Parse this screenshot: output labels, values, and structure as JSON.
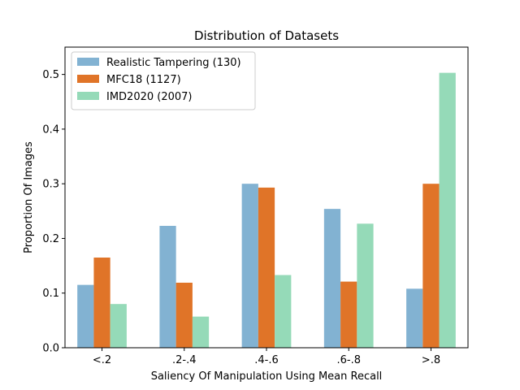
{
  "chart_data": {
    "type": "bar",
    "title": "Distribution of Datasets",
    "xlabel": "Saliency Of Manipulation Using Mean Recall",
    "ylabel": "Proportion Of Images",
    "categories": [
      "<.2",
      ".2-.4",
      ".4-.6",
      ".6-.8",
      ">.8"
    ],
    "ylim": [
      0,
      0.55
    ],
    "yticks": [
      0.0,
      0.1,
      0.2,
      0.3,
      0.4,
      0.5
    ],
    "ytick_labels": [
      "0.0",
      "0.1",
      "0.2",
      "0.3",
      "0.4",
      "0.5"
    ],
    "legend_position": "top-left",
    "grid": false,
    "series": [
      {
        "name": "Realistic Tampering (130)",
        "color": "#82b2d2",
        "values": [
          0.115,
          0.223,
          0.3,
          0.254,
          0.108
        ]
      },
      {
        "name": "MFC18 (1127)",
        "color": "#e07428",
        "values": [
          0.165,
          0.119,
          0.293,
          0.121,
          0.3
        ]
      },
      {
        "name": "IMD2020 (2007)",
        "color": "#95dab8",
        "values": [
          0.08,
          0.057,
          0.133,
          0.227,
          0.503
        ]
      }
    ]
  }
}
